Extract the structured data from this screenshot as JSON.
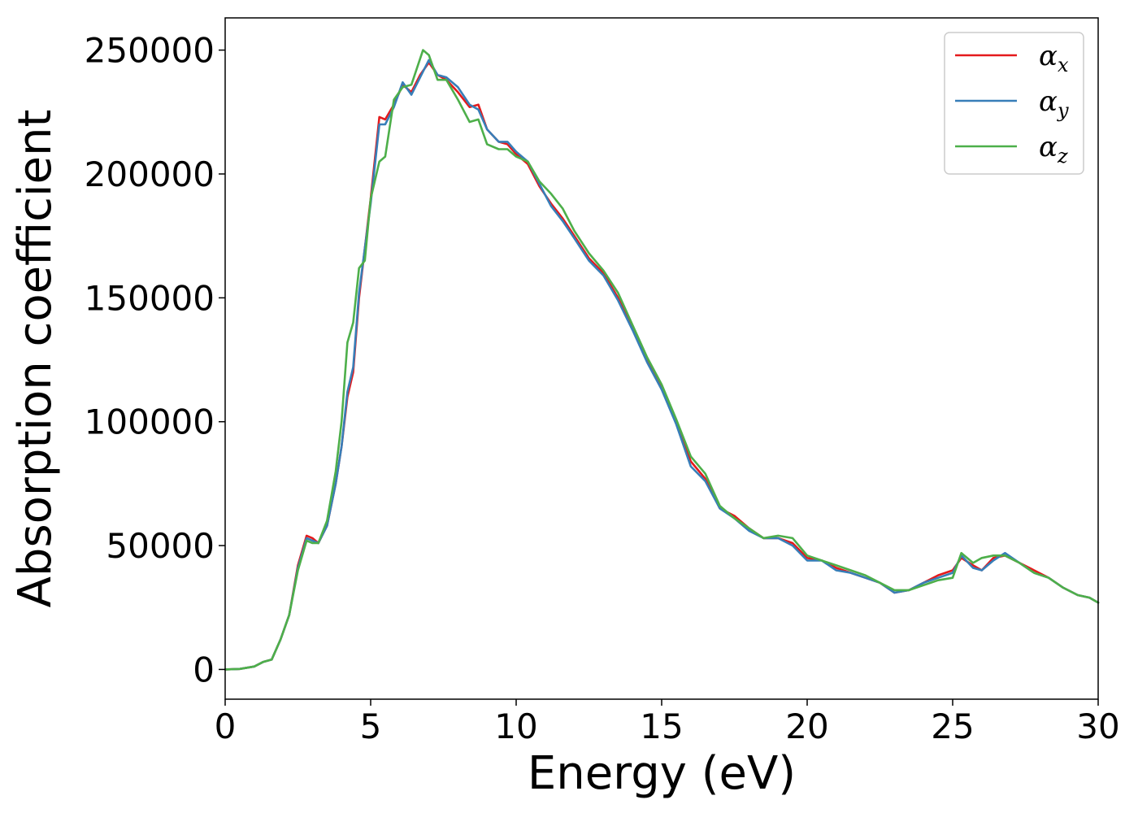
{
  "chart_data": {
    "type": "line",
    "xlabel": "Energy (eV)",
    "ylabel": "Absorption coefficient",
    "xlim": [
      0,
      30
    ],
    "ylim": [
      -12000,
      263000
    ],
    "xticks": [
      0,
      5,
      10,
      15,
      20,
      25,
      30
    ],
    "yticks": [
      0,
      50000,
      100000,
      150000,
      200000,
      250000
    ],
    "xtick_labels": [
      "0",
      "5",
      "10",
      "15",
      "20",
      "25",
      "30"
    ],
    "ytick_labels": [
      "0",
      "50000",
      "100000",
      "150000",
      "200000",
      "250000"
    ],
    "grid": false,
    "legend_position": "top-right",
    "series": [
      {
        "name": "α_x",
        "legend_base": "α",
        "legend_sub": "x",
        "color": "#e41a1c",
        "x": [
          0,
          0.5,
          1.0,
          1.3,
          1.6,
          1.9,
          2.2,
          2.5,
          2.8,
          3.0,
          3.2,
          3.5,
          3.8,
          4.0,
          4.2,
          4.4,
          4.6,
          5.0,
          5.3,
          5.5,
          5.8,
          6.1,
          6.4,
          6.7,
          7.0,
          7.3,
          7.6,
          8.0,
          8.4,
          8.7,
          9.0,
          9.4,
          9.7,
          10.0,
          10.4,
          10.8,
          11.2,
          11.6,
          12.0,
          12.5,
          13.0,
          13.5,
          14.0,
          14.5,
          15.0,
          15.5,
          16.0,
          16.5,
          17.0,
          17.5,
          18.0,
          18.5,
          19.0,
          19.5,
          20.0,
          20.5,
          21.0,
          21.5,
          22.0,
          22.5,
          23.0,
          23.5,
          24.0,
          24.5,
          25.0,
          25.3,
          25.7,
          26.0,
          26.4,
          26.8,
          27.3,
          27.8,
          28.3,
          28.8,
          29.3,
          29.7,
          30.0
        ],
        "y": [
          0,
          200,
          1200,
          3000,
          4000,
          12000,
          22000,
          42000,
          54000,
          53000,
          51000,
          58000,
          75000,
          90000,
          110000,
          120000,
          150000,
          190000,
          223000,
          222000,
          228000,
          236000,
          233000,
          240000,
          245000,
          240000,
          238000,
          233000,
          227000,
          228000,
          218000,
          213000,
          212000,
          208000,
          204000,
          195000,
          188000,
          182000,
          175000,
          166000,
          160000,
          150000,
          138000,
          125000,
          114000,
          100000,
          84000,
          77000,
          65000,
          62000,
          57000,
          53000,
          53000,
          51000,
          45000,
          44000,
          41000,
          39000,
          37000,
          35000,
          31000,
          32000,
          35000,
          38000,
          40000,
          45000,
          42000,
          40000,
          45000,
          46000,
          43000,
          40000,
          37000,
          33000,
          30000,
          29000,
          27000
        ]
      },
      {
        "name": "α_y",
        "legend_base": "α",
        "legend_sub": "y",
        "color": "#377eb8",
        "x": [
          0,
          0.5,
          1.0,
          1.3,
          1.6,
          1.9,
          2.2,
          2.5,
          2.8,
          3.0,
          3.2,
          3.5,
          3.8,
          4.0,
          4.2,
          4.4,
          4.6,
          5.0,
          5.3,
          5.5,
          5.8,
          6.1,
          6.4,
          6.7,
          7.0,
          7.3,
          7.6,
          8.0,
          8.4,
          8.7,
          9.0,
          9.4,
          9.7,
          10.0,
          10.4,
          10.8,
          11.2,
          11.6,
          12.0,
          12.5,
          13.0,
          13.5,
          14.0,
          14.5,
          15.0,
          15.5,
          16.0,
          16.5,
          17.0,
          17.5,
          18.0,
          18.5,
          19.0,
          19.5,
          20.0,
          20.5,
          21.0,
          21.5,
          22.0,
          22.5,
          23.0,
          23.5,
          24.0,
          24.5,
          25.0,
          25.3,
          25.7,
          26.0,
          26.4,
          26.8,
          27.3,
          27.8,
          28.3,
          28.8,
          29.3,
          29.7,
          30.0
        ],
        "y": [
          0,
          200,
          1200,
          3000,
          4000,
          12000,
          22000,
          41000,
          53000,
          52000,
          51000,
          58000,
          75000,
          90000,
          112000,
          122000,
          152000,
          188000,
          220000,
          220000,
          227000,
          237000,
          232000,
          239000,
          246000,
          240000,
          239000,
          235000,
          228000,
          226000,
          218000,
          213000,
          213000,
          209000,
          205000,
          196000,
          187000,
          181000,
          174000,
          165000,
          159000,
          149000,
          137000,
          124000,
          113000,
          99000,
          82000,
          76000,
          65000,
          61000,
          56000,
          53000,
          53000,
          50000,
          44000,
          44000,
          40000,
          39000,
          37000,
          35000,
          31000,
          32000,
          35000,
          37000,
          39000,
          46000,
          41000,
          40000,
          44000,
          47000,
          43000,
          39000,
          37000,
          33000,
          30000,
          29000,
          27000
        ]
      },
      {
        "name": "α_z",
        "legend_base": "α",
        "legend_sub": "z",
        "color": "#4daf4a",
        "x": [
          0,
          0.5,
          1.0,
          1.3,
          1.6,
          1.9,
          2.2,
          2.5,
          2.8,
          3.0,
          3.2,
          3.5,
          3.8,
          4.0,
          4.2,
          4.4,
          4.6,
          4.8,
          5.0,
          5.3,
          5.5,
          5.8,
          6.1,
          6.4,
          6.8,
          7.0,
          7.3,
          7.6,
          8.0,
          8.4,
          8.7,
          9.0,
          9.4,
          9.7,
          10.0,
          10.4,
          10.8,
          11.2,
          11.6,
          12.0,
          12.5,
          13.0,
          13.5,
          14.0,
          14.5,
          15.0,
          15.5,
          16.0,
          16.5,
          17.0,
          17.5,
          18.0,
          18.5,
          19.0,
          19.5,
          20.0,
          20.5,
          21.0,
          21.5,
          22.0,
          22.5,
          23.0,
          23.5,
          24.0,
          24.5,
          25.0,
          25.3,
          25.7,
          26.0,
          26.4,
          26.8,
          27.3,
          27.8,
          28.3,
          28.8,
          29.3,
          29.7,
          30.0
        ],
        "y": [
          0,
          200,
          1200,
          3000,
          4000,
          12000,
          22000,
          40000,
          52000,
          51000,
          51000,
          60000,
          80000,
          100000,
          132000,
          140000,
          162000,
          165000,
          190000,
          205000,
          207000,
          230000,
          235000,
          236000,
          250000,
          248000,
          238000,
          238000,
          230000,
          221000,
          222000,
          212000,
          210000,
          210000,
          207000,
          205000,
          197000,
          192000,
          186000,
          177000,
          168000,
          161000,
          152000,
          139000,
          126000,
          115000,
          101000,
          86000,
          79000,
          66000,
          61000,
          57000,
          53000,
          54000,
          53000,
          46000,
          44000,
          42000,
          40000,
          38000,
          35000,
          32000,
          32000,
          34000,
          36000,
          37000,
          47000,
          43000,
          45000,
          46000,
          46000,
          43000,
          39000,
          37000,
          33000,
          30000,
          29000,
          27000
        ]
      }
    ]
  }
}
